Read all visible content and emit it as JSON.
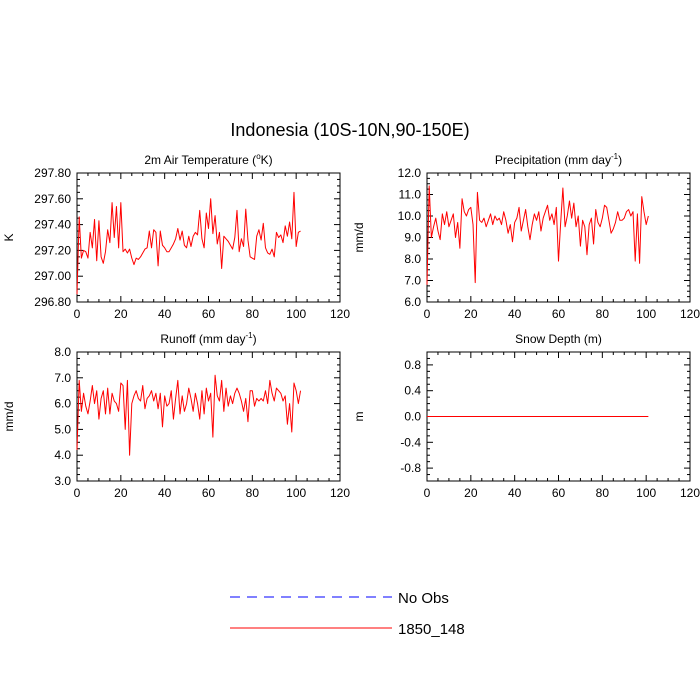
{
  "title": "Indonesia (10S-10N,90-150E)",
  "colors": {
    "model": "#ff0000",
    "obs": "#0000ff",
    "axis": "#000000"
  },
  "legend": {
    "placement": "bottom-center",
    "entries": [
      {
        "label": "No Obs",
        "style": "dashed",
        "color": "#0000ff"
      },
      {
        "label": "1850_148",
        "style": "solid",
        "color": "#ff0000"
      }
    ]
  },
  "chart_data": [
    {
      "type": "line",
      "title": "2m Air Temperature (",
      "title_super": "o",
      "title_after": "K)",
      "ylabel": "K",
      "xlim": [
        0,
        120
      ],
      "ylim": [
        296.8,
        297.8
      ],
      "xticks": [
        0,
        20,
        40,
        60,
        80,
        100,
        120
      ],
      "yticks": [
        296.8,
        297.0,
        297.2,
        297.4,
        297.6,
        297.8
      ],
      "yticklabels": [
        "296.80",
        "297.00",
        "297.20",
        "297.40",
        "297.60",
        "297.80"
      ],
      "series": [
        {
          "x_start": 0,
          "values": [
            296.86,
            297.46,
            297.14,
            297.2,
            297.19,
            297.14,
            297.34,
            297.22,
            297.44,
            297.12,
            297.43,
            297.15,
            297.1,
            297.19,
            297.36,
            297.26,
            297.57,
            297.3,
            297.54,
            297.22,
            297.57,
            297.19,
            297.21,
            297.18,
            297.21,
            297.14,
            297.09,
            297.14,
            297.13,
            297.15,
            297.18,
            297.21,
            297.22,
            297.35,
            297.22,
            297.36,
            297.34,
            297.08,
            297.35,
            297.24,
            297.22,
            297.19,
            297.19,
            297.22,
            297.25,
            297.29,
            297.37,
            297.28,
            297.35,
            297.24,
            297.22,
            297.31,
            297.23,
            297.31,
            297.34,
            297.32,
            297.51,
            297.29,
            297.22,
            297.49,
            297.37,
            297.6,
            297.33,
            297.47,
            297.25,
            297.34,
            297.06,
            297.31,
            297.29,
            297.27,
            297.24,
            297.21,
            297.3,
            297.51,
            297.19,
            297.29,
            297.23,
            297.52,
            297.28,
            297.15,
            297.14,
            297.13,
            297.31,
            297.36,
            297.28,
            297.41,
            297.22,
            297.18,
            297.17,
            297.21,
            297.15,
            297.34,
            297.3,
            297.32,
            297.26,
            297.39,
            297.31,
            297.42,
            297.29,
            297.65,
            297.23,
            297.34,
            297.35
          ]
        }
      ]
    },
    {
      "type": "line",
      "title": "Precipitation (mm day",
      "title_super": "-1",
      "title_after": ")",
      "ylabel": "mm/d",
      "xlim": [
        0,
        120
      ],
      "ylim": [
        6.0,
        12.0
      ],
      "xticks": [
        0,
        20,
        40,
        60,
        80,
        100,
        120
      ],
      "yticks": [
        6.0,
        7.0,
        8.0,
        9.0,
        10.0,
        11.0,
        12.0
      ],
      "yticklabels": [
        "6.0",
        "7.0",
        "8.0",
        "9.0",
        "10.0",
        "11.0",
        "12.0"
      ],
      "series": [
        {
          "x_start": 0,
          "values": [
            6.8,
            11.4,
            9.0,
            9.5,
            9.9,
            9.3,
            8.9,
            10.1,
            9.6,
            10.2,
            9.5,
            9.8,
            10.1,
            9.0,
            9.7,
            8.5,
            10.8,
            10.2,
            10.0,
            10.3,
            10.4,
            9.6,
            6.9,
            11.1,
            9.8,
            9.7,
            9.9,
            9.5,
            9.8,
            10.1,
            9.6,
            10.0,
            9.8,
            9.9,
            9.6,
            10.2,
            9.8,
            9.2,
            9.6,
            8.8,
            9.7,
            9.9,
            10.4,
            9.3,
            9.8,
            10.3,
            9.5,
            8.9,
            9.6,
            10.1,
            9.8,
            10.2,
            9.3,
            9.9,
            10.2,
            10.5,
            9.8,
            10.1,
            9.6,
            10.4,
            7.9,
            9.7,
            11.3,
            9.5,
            10.0,
            10.7,
            9.9,
            10.6,
            9.5,
            10.0,
            8.6,
            9.8,
            9.5,
            8.2,
            9.6,
            9.9,
            8.7,
            10.3,
            9.7,
            9.5,
            9.9,
            10.5,
            10.4,
            9.8,
            9.2,
            9.4,
            9.7,
            10.2,
            9.8,
            9.8,
            9.9,
            10.2,
            10.3,
            10.0,
            10.2,
            7.9,
            10.1,
            7.8,
            10.9,
            10.2,
            9.6,
            10.0
          ]
        }
      ]
    },
    {
      "type": "line",
      "title": "Runoff (mm day",
      "title_super": "-1",
      "title_after": ")",
      "ylabel": "mm/d",
      "xlim": [
        0,
        120
      ],
      "ylim": [
        3.0,
        8.0
      ],
      "xticks": [
        0,
        20,
        40,
        60,
        80,
        100,
        120
      ],
      "yticks": [
        3.0,
        4.0,
        5.0,
        6.0,
        7.0,
        8.0
      ],
      "yticklabels": [
        "3.0",
        "4.0",
        "5.0",
        "6.0",
        "7.0",
        "8.0"
      ],
      "series": [
        {
          "x_start": 0,
          "values": [
            4.2,
            6.9,
            5.7,
            6.4,
            5.9,
            5.6,
            6.1,
            6.7,
            6.0,
            6.5,
            5.4,
            6.2,
            6.5,
            5.6,
            6.6,
            5.6,
            6.4,
            6.1,
            6.0,
            5.7,
            6.8,
            6.7,
            5.0,
            6.9,
            4.0,
            6.0,
            6.3,
            6.5,
            6.2,
            6.1,
            6.7,
            5.8,
            6.2,
            6.3,
            6.5,
            6.1,
            6.4,
            5.8,
            6.4,
            5.1,
            6.3,
            5.9,
            6.0,
            6.5,
            5.4,
            6.2,
            6.9,
            5.6,
            6.3,
            5.7,
            6.0,
            6.6,
            6.2,
            5.7,
            6.4,
            6.0,
            5.4,
            6.5,
            5.6,
            6.6,
            6.1,
            6.4,
            4.7,
            7.1,
            6.3,
            6.1,
            6.9,
            5.7,
            6.6,
            5.9,
            6.3,
            6.0,
            6.4,
            6.6,
            6.4,
            6.1,
            5.7,
            6.2,
            5.3,
            6.5,
            6.5,
            5.9,
            6.2,
            6.1,
            6.2,
            6.1,
            6.5,
            6.0,
            6.9,
            6.4,
            6.1,
            6.6,
            6.5,
            6.4,
            6.1,
            6.3,
            5.2,
            6.0,
            4.9,
            6.8,
            6.5,
            6.0,
            6.5
          ]
        }
      ]
    },
    {
      "type": "line",
      "title": "Snow Depth (m)",
      "title_super": "",
      "title_after": "",
      "ylabel": "m",
      "xlim": [
        0,
        120
      ],
      "ylim": [
        -1.0,
        1.0
      ],
      "xticks": [
        0,
        20,
        40,
        60,
        80,
        100,
        120
      ],
      "yticks": [
        -0.8,
        -0.4,
        0.0,
        0.4,
        0.8
      ],
      "yticklabels": [
        "-0.8",
        "-0.4",
        "0.0",
        "0.4",
        "0.8"
      ],
      "series": [
        {
          "x_start": 0,
          "x_end": 101,
          "constant": 0.0
        }
      ]
    }
  ]
}
